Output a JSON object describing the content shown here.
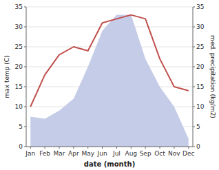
{
  "chart_data": {
    "type": "line",
    "categories": [
      "Jan",
      "Feb",
      "Mar",
      "Apr",
      "May",
      "Jun",
      "Jul",
      "Aug",
      "Sep",
      "Oct",
      "Nov",
      "Dec"
    ],
    "series": [
      {
        "type": "area",
        "axis": "y2",
        "color": "#c5cce8",
        "values": [
          7.5,
          7.0,
          9.0,
          12.0,
          20.0,
          29.0,
          33.0,
          33.0,
          22.0,
          15.0,
          10.0,
          2.0
        ]
      },
      {
        "type": "line",
        "color": "#c0504d",
        "values": [
          10,
          18,
          23,
          25,
          24,
          31,
          32,
          33,
          32,
          22,
          15,
          14
        ]
      }
    ],
    "xlabel": "date (month)",
    "ylabel": "max temp (C)",
    "y2label": "med. precipitation (kg/m2)",
    "ylim": [
      0,
      35
    ],
    "yticks": [
      0,
      5,
      10,
      15,
      20,
      25,
      30,
      35
    ],
    "y2lim": [
      0,
      35
    ],
    "y2ticks": [
      0,
      5,
      10,
      15,
      20,
      25,
      30,
      35
    ],
    "grid": true
  }
}
